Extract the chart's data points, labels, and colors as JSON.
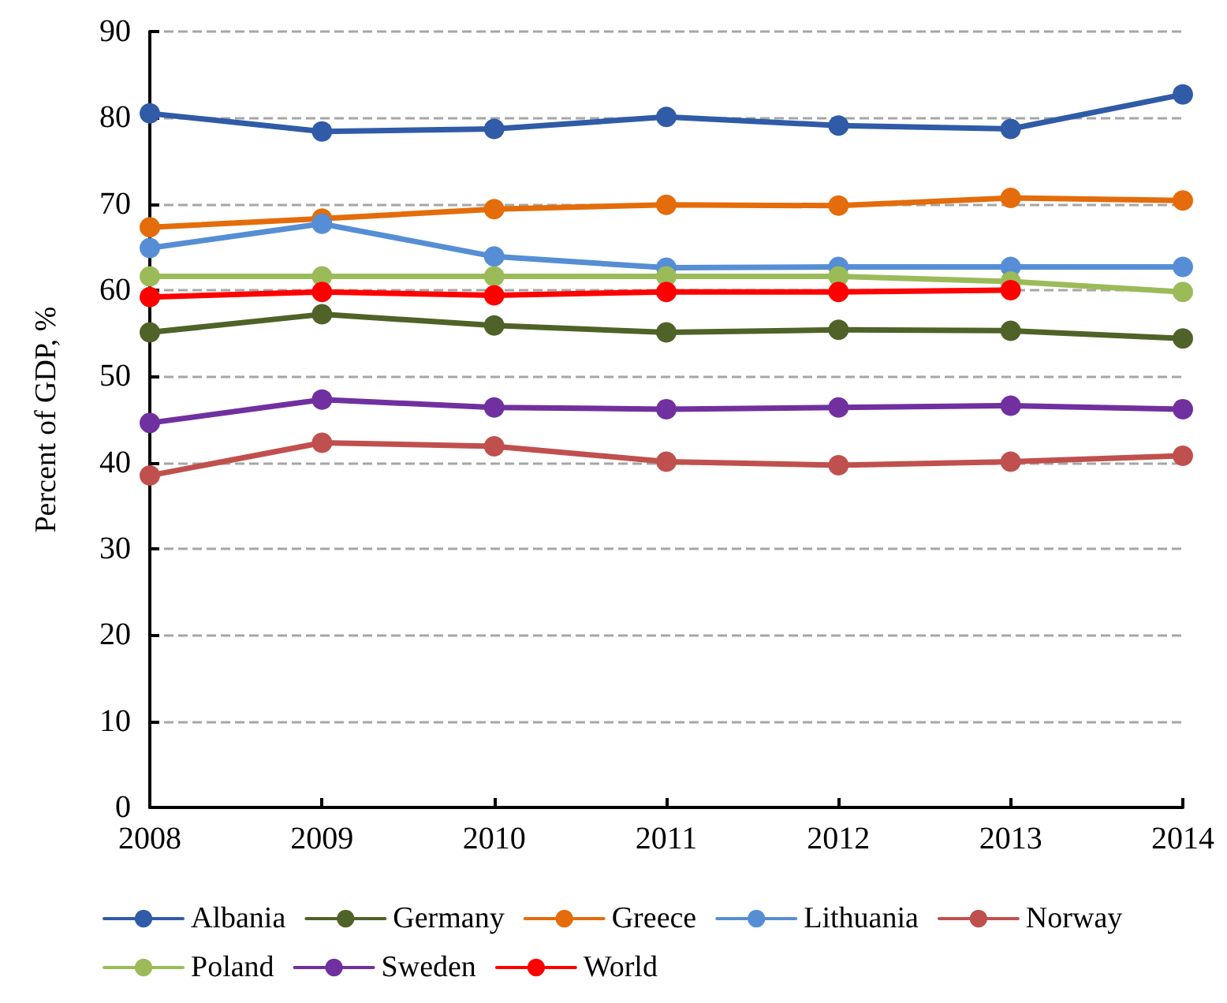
{
  "chart_data": {
    "type": "line",
    "ylabel": "Percent of GDP, %",
    "x": [
      2008,
      2009,
      2010,
      2011,
      2012,
      2013,
      2014
    ],
    "series": [
      {
        "name": "Albania",
        "color": "#2f5ba7",
        "values": [
          80.5,
          78.4,
          78.7,
          80.1,
          79.1,
          78.7,
          82.7
        ]
      },
      {
        "name": "Germany",
        "color": "#4f6228",
        "values": [
          55.1,
          57.2,
          55.9,
          55.1,
          55.4,
          55.3,
          54.4
        ]
      },
      {
        "name": "Greece",
        "color": "#e46c0a",
        "values": [
          67.3,
          68.3,
          69.4,
          69.9,
          69.8,
          70.7,
          70.4
        ]
      },
      {
        "name": "Lithuania",
        "color": "#558ed5",
        "values": [
          64.9,
          67.7,
          63.9,
          62.6,
          62.7,
          62.7,
          62.7
        ]
      },
      {
        "name": "Norway",
        "color": "#c0504d",
        "values": [
          38.5,
          42.3,
          41.9,
          40.1,
          39.7,
          40.1,
          40.8
        ]
      },
      {
        "name": "Poland",
        "color": "#9bbb59",
        "values": [
          61.6,
          61.6,
          61.6,
          61.6,
          61.6,
          61.0,
          59.8
        ]
      },
      {
        "name": "Sweden",
        "color": "#7030a0",
        "values": [
          44.6,
          47.3,
          46.4,
          46.2,
          46.4,
          46.6,
          46.2
        ]
      },
      {
        "name": "World",
        "color": "#ff0000",
        "values": [
          59.2,
          59.8,
          59.4,
          59.8,
          59.8,
          60.0,
          null
        ]
      }
    ],
    "xlim": [
      2008,
      2014
    ],
    "xticks": [
      2008,
      2009,
      2010,
      2011,
      2012,
      2013,
      2014
    ],
    "ylim": [
      0,
      90
    ],
    "yticks": [
      0,
      10,
      20,
      30,
      40,
      50,
      60,
      70,
      80,
      90
    ],
    "grid": "y",
    "legend": "bottom",
    "marker": "circle",
    "line_style": "solid"
  }
}
